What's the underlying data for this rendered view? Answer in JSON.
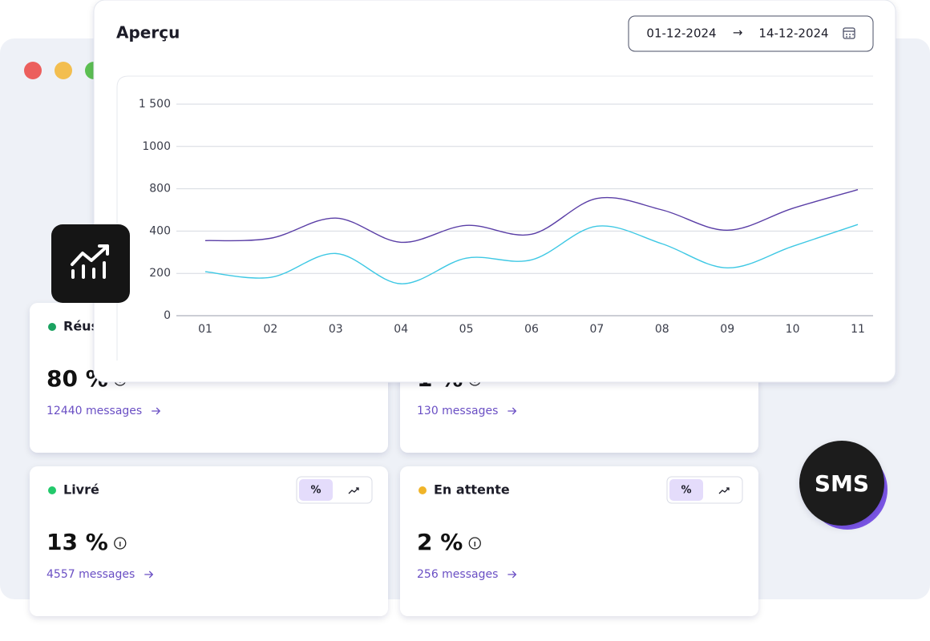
{
  "panel": {
    "title": "Aperçu",
    "date_from": "01-12-2024",
    "date_arrow": "→",
    "date_to": "14-12-2024"
  },
  "chart_data": {
    "type": "line",
    "categories": [
      "01",
      "02",
      "03",
      "04",
      "05",
      "06",
      "07",
      "08",
      "09",
      "10",
      "11"
    ],
    "series": [
      {
        "color": "#5a3ea6",
        "values": [
          355,
          366,
          523,
          347,
          454,
          385,
          708,
          600,
          408,
          615,
          792
        ]
      },
      {
        "color": "#3ec8e4",
        "values": [
          208,
          181,
          294,
          151,
          272,
          264,
          446,
          340,
          226,
          328,
          462
        ]
      }
    ],
    "ylim": [
      0,
      1500
    ],
    "yticks": [
      0,
      200,
      400,
      800,
      1000,
      {
        "value": 1500,
        "label": "1 500"
      }
    ],
    "grid": true
  },
  "cards": [
    {
      "title": "Réussi",
      "dot": "#1aa260",
      "value": "80 %",
      "link": "12440 messages"
    },
    {
      "value": "1 %",
      "link": "130 messages"
    },
    {
      "title": "Livré",
      "dot": "#22c96b",
      "value": "13 %",
      "link": "4557 messages",
      "toggle": "%"
    },
    {
      "title": "En attente",
      "dot": "#f0b429",
      "value": "2 %",
      "link": "256 messages",
      "toggle": "%"
    }
  ],
  "badge": "SMS"
}
